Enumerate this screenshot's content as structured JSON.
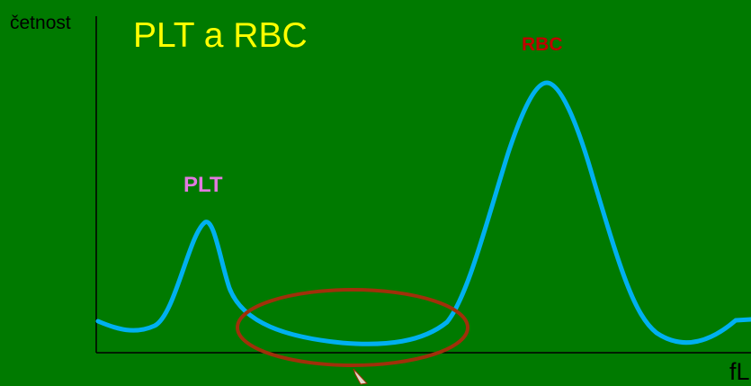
{
  "diagram": {
    "title": "PLT a RBC",
    "y_axis_label": "četnost",
    "x_axis_label": "fL",
    "peaks": {
      "plt": {
        "label": "PLT",
        "color": "#e27ae0"
      },
      "rbc": {
        "label": "RBC",
        "color": "#c00000"
      }
    },
    "colors": {
      "background": "#007a00",
      "curve": "#00b0f0",
      "highlight_ellipse": "#a0300a",
      "title": "#ffff00",
      "axes": "#000000"
    }
  }
}
